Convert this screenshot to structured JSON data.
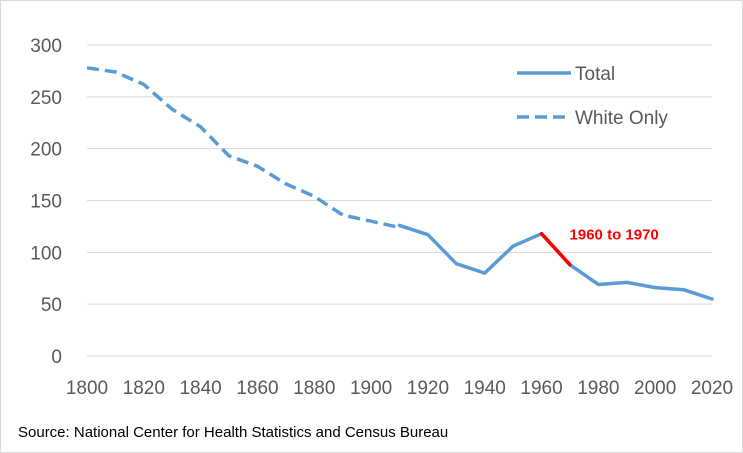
{
  "chart_data": {
    "type": "line",
    "title": "",
    "xlabel": "",
    "ylabel": "",
    "xlim": [
      1800,
      2020
    ],
    "ylim": [
      0,
      300
    ],
    "x_ticks": [
      1800,
      1820,
      1840,
      1860,
      1880,
      1900,
      1920,
      1940,
      1960,
      1980,
      2000,
      2020
    ],
    "y_ticks": [
      0,
      50,
      100,
      150,
      200,
      250,
      300
    ],
    "grid": "horizontal",
    "legend": "top-right",
    "colors": {
      "series": "#5b9bd5",
      "highlight": "#ff0000",
      "grid": "#d9d9d9",
      "tick_text": "#595959"
    },
    "series": [
      {
        "name": "Total",
        "line_style": "solid",
        "x": [
          1910,
          1920,
          1930,
          1940,
          1950,
          1960,
          1970,
          1980,
          1990,
          2000,
          2010,
          2020
        ],
        "y": [
          126,
          117,
          89,
          80,
          106,
          118,
          88,
          69,
          71,
          66,
          64,
          55
        ]
      },
      {
        "name": "White Only",
        "line_style": "dashed",
        "x": [
          1800,
          1810,
          1820,
          1830,
          1840,
          1850,
          1860,
          1870,
          1880,
          1890,
          1900,
          1910
        ],
        "y": [
          278,
          274,
          262,
          238,
          221,
          193,
          183,
          166,
          154,
          136,
          130,
          124
        ]
      }
    ],
    "annotations": [
      {
        "text": "1960 to 1970",
        "color": "#ff0000",
        "segment_x": [
          1960,
          1970
        ],
        "segment_y": [
          118,
          88
        ]
      }
    ]
  },
  "source": "Source: National Center for Health Statistics and Census Bureau"
}
